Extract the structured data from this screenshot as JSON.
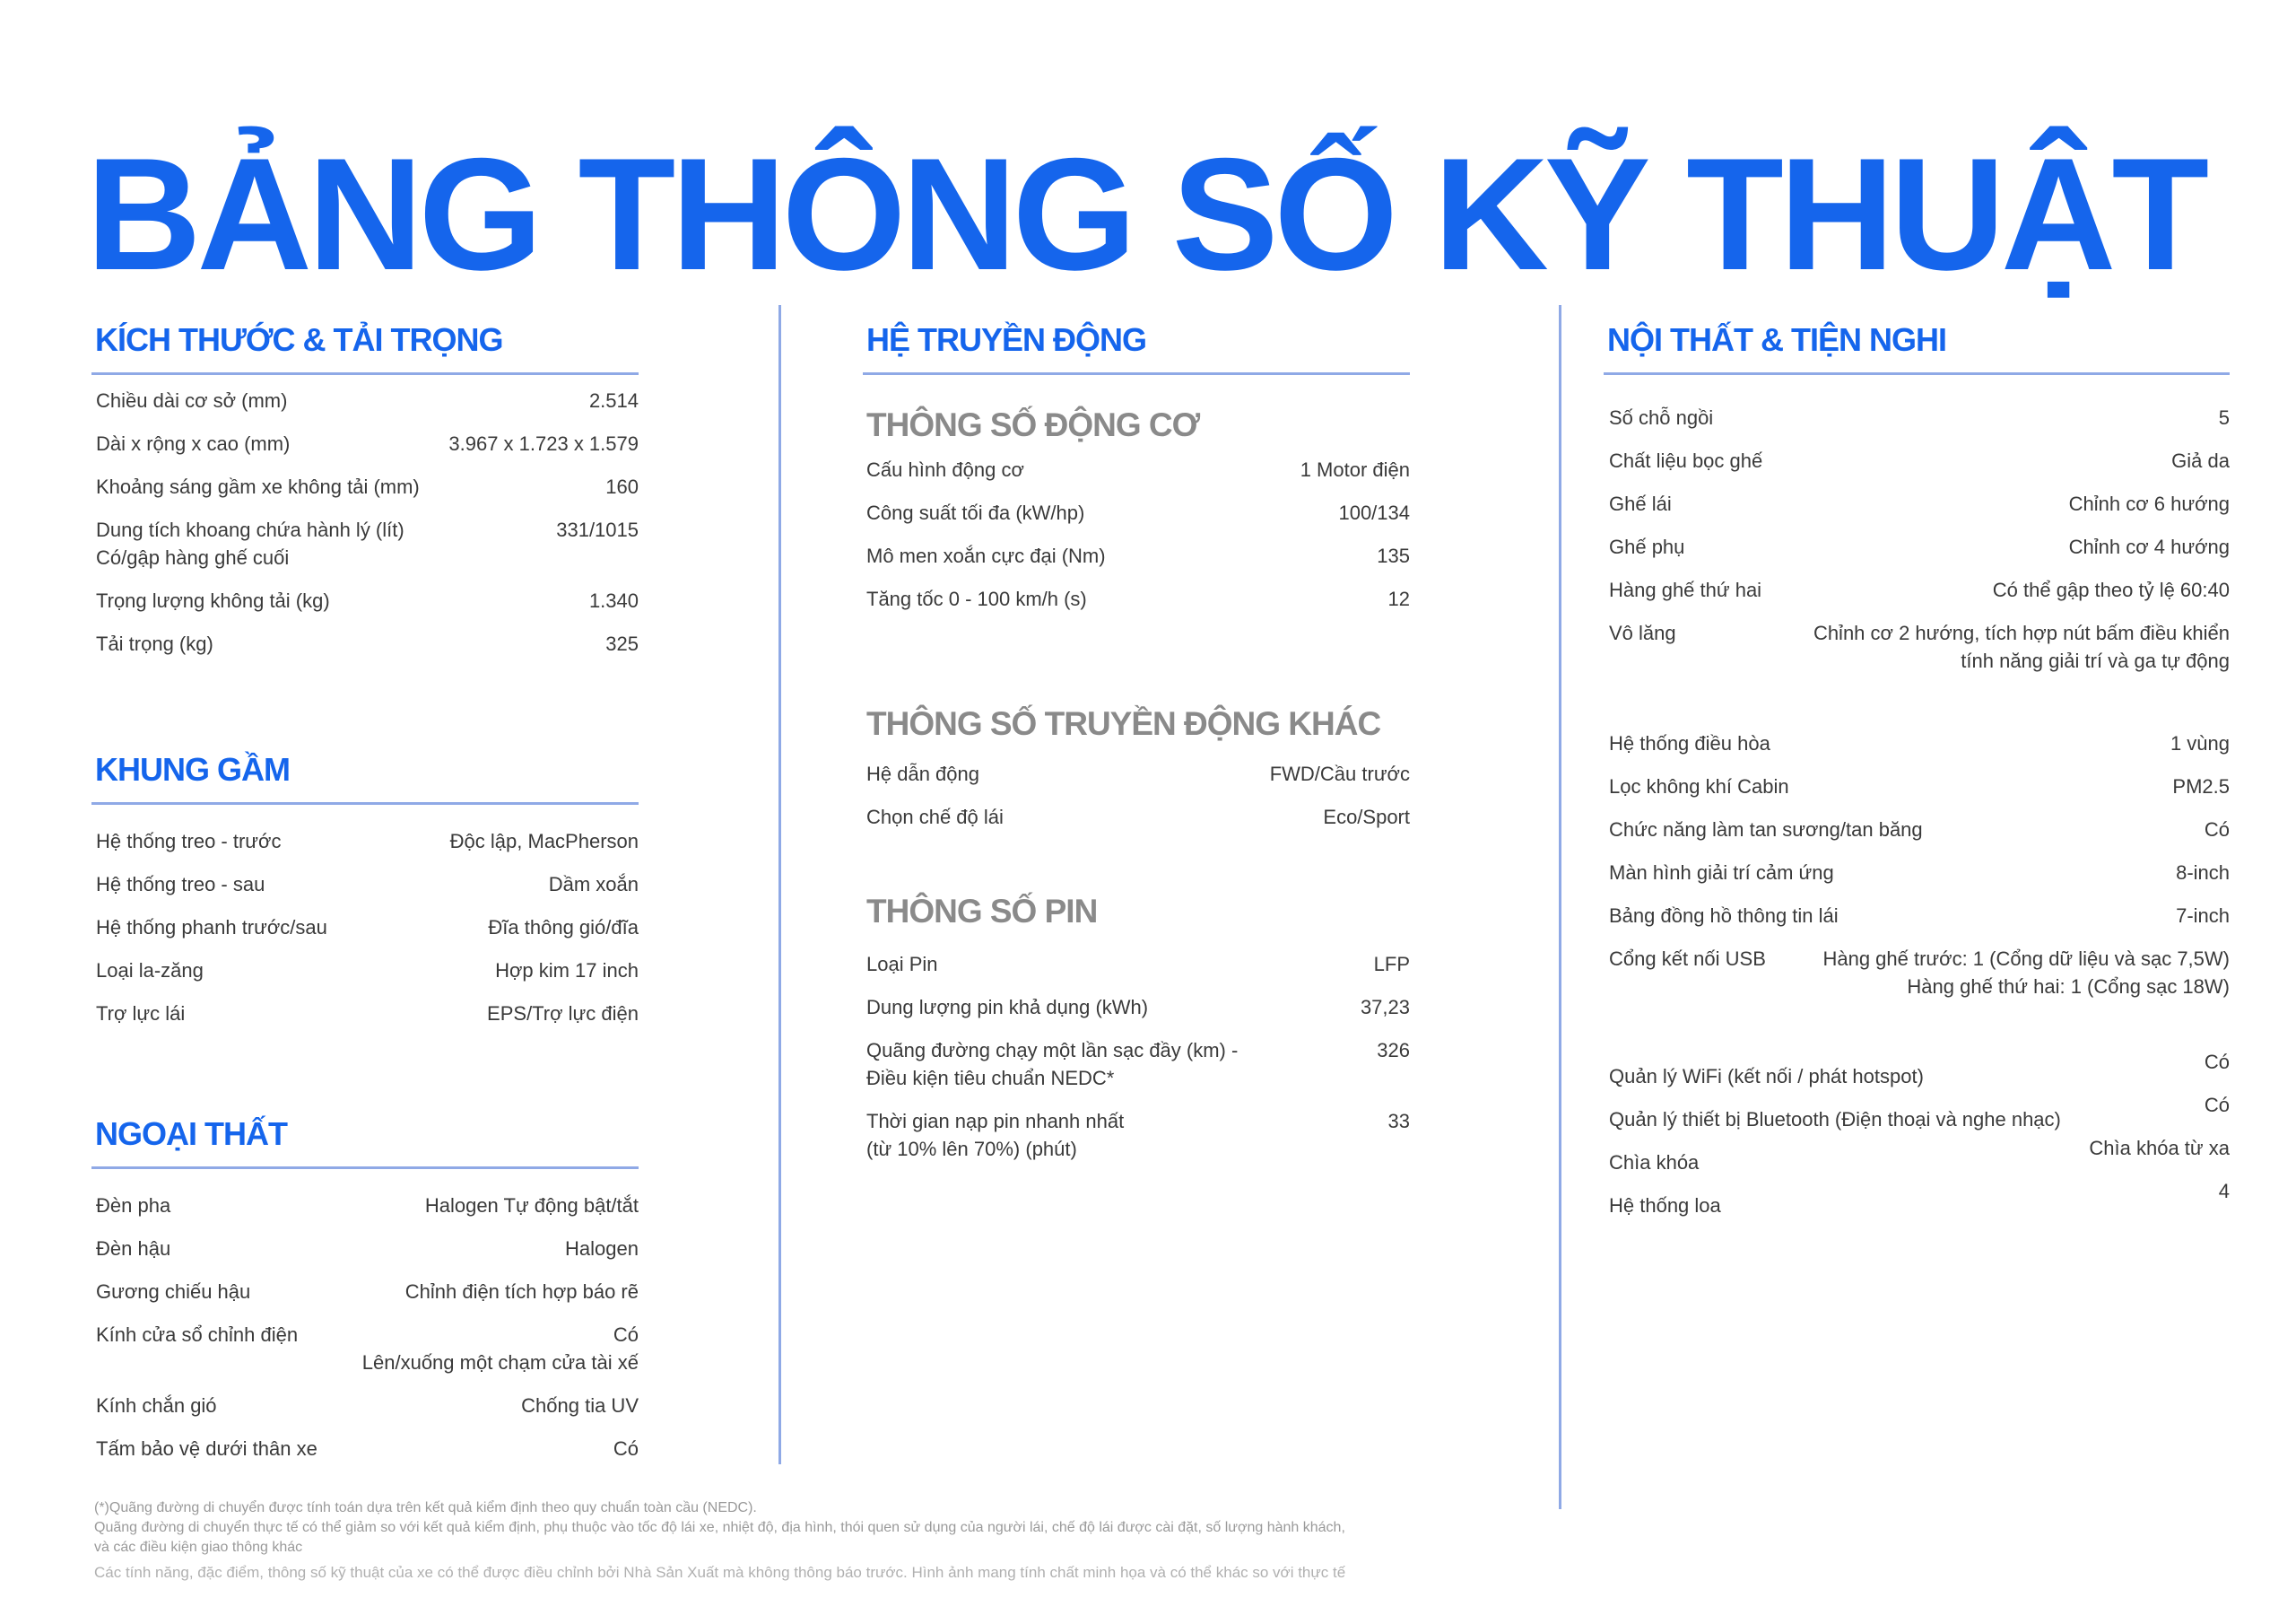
{
  "title": "BẢNG THÔNG SỐ KỸ THUẬT",
  "colors": {
    "accent": "#1565ec",
    "rule": "#8fa9e6",
    "subheading": "#8a8a8a"
  },
  "kich_thuoc": {
    "heading": "KÍCH THƯỚC & TẢI TRỌNG",
    "rows": [
      {
        "label": "Chiều dài cơ sở (mm)",
        "value": "2.514"
      },
      {
        "label": "Dài x rộng x cao (mm)",
        "value": "3.967 x 1.723 x 1.579"
      },
      {
        "label": "Khoảng sáng gầm xe không tải (mm)",
        "value": "160"
      },
      {
        "label": "Dung tích khoang chứa hành lý (lít)\nCó/gập hàng ghế cuối",
        "value": "331/1015"
      },
      {
        "label": "Trọng lượng không tải (kg)",
        "value": "1.340"
      },
      {
        "label": "Tải trọng (kg)",
        "value": "325"
      }
    ]
  },
  "khung_gam": {
    "heading": "KHUNG GẦM",
    "rows": [
      {
        "label": "Hệ thống treo - trước",
        "value": "Độc lập, MacPherson"
      },
      {
        "label": "Hệ thống treo - sau",
        "value": "Dầm xoắn"
      },
      {
        "label": "Hệ thống phanh trước/sau",
        "value": "Đĩa thông gió/đĩa"
      },
      {
        "label": "Loại la-zăng",
        "value": "Hợp kim 17 inch"
      },
      {
        "label": "Trợ lực lái",
        "value": "EPS/Trợ lực điện"
      }
    ]
  },
  "ngoai_that": {
    "heading": "NGOẠI THẤT",
    "rows": [
      {
        "label": "Đèn pha",
        "value": "Halogen Tự động bật/tắt"
      },
      {
        "label": "Đèn hậu",
        "value": "Halogen"
      },
      {
        "label": "Gương chiếu hậu",
        "value": "Chỉnh điện tích hợp báo rẽ"
      },
      {
        "label": "Kính cửa sổ chỉnh điện",
        "value": "Có\nLên/xuống một chạm cửa tài xế"
      },
      {
        "label": "Kính chắn gió",
        "value": "Chống tia UV"
      },
      {
        "label": "Tấm bảo vệ dưới thân xe",
        "value": "Có"
      }
    ]
  },
  "truyen_dong": {
    "heading": "HỆ TRUYỀN ĐỘNG",
    "dong_co": {
      "heading": "THÔNG SỐ ĐỘNG CƠ",
      "rows": [
        {
          "label": "Cấu hình động cơ",
          "value": "1 Motor điện"
        },
        {
          "label": "Công suất tối đa (kW/hp)",
          "value": "100/134"
        },
        {
          "label": "Mô men xoắn cực đại (Nm)",
          "value": "135"
        },
        {
          "label": "Tăng tốc 0 - 100 km/h (s)",
          "value": "12"
        }
      ]
    },
    "khac": {
      "heading": "THÔNG SỐ TRUYỀN ĐỘNG KHÁC",
      "rows": [
        {
          "label": "Hệ dẫn động",
          "value": "FWD/Cầu trước"
        },
        {
          "label": "Chọn chế độ lái",
          "value": "Eco/Sport"
        }
      ]
    },
    "pin": {
      "heading": "THÔNG SỐ PIN",
      "rows": [
        {
          "label": "Loại Pin",
          "value": "LFP"
        },
        {
          "label": "Dung lượng pin khả dụng (kWh)",
          "value": "37,23"
        },
        {
          "label": "Quãng đường chạy một lần sạc đầy (km) -\nĐiều kiện tiêu chuẩn NEDC*",
          "value": "326"
        },
        {
          "label": "Thời gian nạp pin nhanh nhất\n(từ 10% lên 70%) (phút)",
          "value": "33"
        }
      ]
    }
  },
  "noi_that": {
    "heading": "NỘI THẤT & TIỆN NGHI",
    "group1": [
      {
        "label": "Số chỗ ngồi",
        "value": "5"
      },
      {
        "label": "Chất liệu bọc ghế",
        "value": "Giả da"
      },
      {
        "label": "Ghế lái",
        "value": "Chỉnh cơ 6 hướng"
      },
      {
        "label": "Ghế phụ",
        "value": "Chỉnh cơ 4 hướng"
      },
      {
        "label": "Hàng ghế thứ hai",
        "value": "Có thể gập theo tỷ lệ 60:40"
      },
      {
        "label": "Vô lăng",
        "value": "Chỉnh cơ 2 hướng, tích hợp nút bấm điều khiển\ntính năng giải trí và ga tự động"
      }
    ],
    "group2": [
      {
        "label": "Hệ thống điều hòa",
        "value": "1 vùng"
      },
      {
        "label": "Lọc không khí Cabin",
        "value": "PM2.5"
      },
      {
        "label": "Chức năng làm tan sương/tan băng",
        "value": "Có"
      },
      {
        "label": "Màn hình giải trí cảm ứng",
        "value": "8-inch"
      },
      {
        "label": "Bảng đồng hồ thông tin lái",
        "value": "7-inch"
      },
      {
        "label": "Cổng kết nối USB",
        "value": "Hàng ghế trước: 1 (Cổng dữ liệu và sạc 7,5W)\nHàng ghế thứ hai: 1 (Cổng sạc 18W)"
      }
    ],
    "group3": [
      {
        "label": "Quản lý WiFi (kết nối / phát hotspot)",
        "value": "Có"
      },
      {
        "label": "Quản lý thiết bị Bluetooth (Điện thoại và nghe nhạc)",
        "value": "Có"
      },
      {
        "label": "Chìa khóa",
        "value": "Chìa khóa từ xa"
      },
      {
        "label": "Hệ thống loa",
        "value": "4"
      }
    ]
  },
  "footnotes": {
    "note1": "(*)Quãng đường di chuyển được tính toán dựa trên kết quả kiểm định theo quy chuẩn toàn cầu (NEDC).\nQuãng đường di chuyển thực tế có thể giảm so với kết quả kiểm định, phụ thuộc vào tốc độ lái xe, nhiệt độ, địa hình, thói quen sử dụng của người lái, chế độ lái được cài đặt, số lượng hành khách,\nvà các điều kiện giao thông khác",
    "note2": "Các tính năng, đặc điểm, thông số kỹ thuật của xe có thể được điều chỉnh bởi Nhà Sản Xuất mà không thông báo trước. Hình ảnh mang tính chất minh họa và có thể khác so với thực tế"
  }
}
